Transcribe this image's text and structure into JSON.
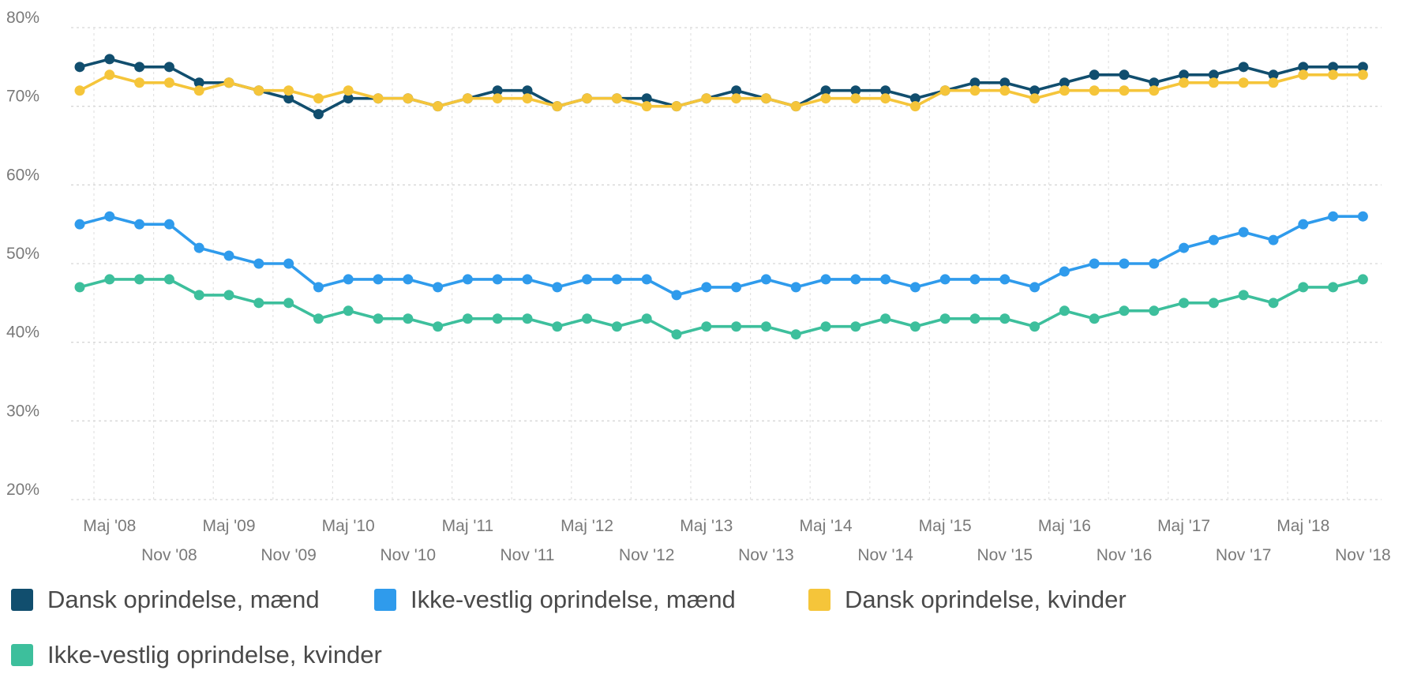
{
  "chart_data": {
    "type": "line",
    "ylim": [
      20,
      80
    ],
    "yticks": [
      20,
      30,
      40,
      50,
      60,
      70,
      80
    ],
    "y_tick_labels": [
      "20%",
      "30%",
      "40%",
      "50%",
      "60%",
      "70%",
      "80%"
    ],
    "x_labels_upper": [
      "Maj '08",
      "Maj '09",
      "Maj '10",
      "Maj '11",
      "Maj '12",
      "Maj '13",
      "Maj '14",
      "Maj '15",
      "Maj '16",
      "Maj '17",
      "Maj '18"
    ],
    "x_labels_lower": [
      "Nov '08",
      "Nov '09",
      "Nov '10",
      "Nov '11",
      "Nov '12",
      "Nov '13",
      "Nov '14",
      "Nov '15",
      "Nov '16",
      "Nov '17",
      "Nov '18"
    ],
    "grid": true,
    "legend_position": "bottom-left",
    "series": [
      {
        "name": "Dansk oprindelse, mænd",
        "color": "#114e6e",
        "values": [
          75,
          76,
          75,
          75,
          73,
          73,
          72,
          71,
          69,
          71,
          71,
          71,
          70,
          71,
          72,
          72,
          70,
          71,
          71,
          71,
          70,
          71,
          72,
          71,
          70,
          72,
          72,
          72,
          71,
          72,
          73,
          73,
          72,
          73,
          74,
          74,
          73,
          74,
          74,
          75,
          74,
          75,
          75,
          75
        ]
      },
      {
        "name": "Ikke-vestlig oprindelse, mænd",
        "color": "#2f9bec",
        "values": [
          55,
          56,
          55,
          55,
          52,
          51,
          50,
          50,
          47,
          48,
          48,
          48,
          47,
          48,
          48,
          48,
          47,
          48,
          48,
          48,
          46,
          47,
          47,
          48,
          47,
          48,
          48,
          48,
          47,
          48,
          48,
          48,
          47,
          49,
          50,
          50,
          50,
          52,
          53,
          54,
          53,
          55,
          56,
          56
        ]
      },
      {
        "name": "Dansk oprindelse, kvinder",
        "color": "#f5c53a",
        "values": [
          72,
          74,
          73,
          73,
          72,
          73,
          72,
          72,
          71,
          72,
          71,
          71,
          70,
          71,
          71,
          71,
          70,
          71,
          71,
          70,
          70,
          71,
          71,
          71,
          70,
          71,
          71,
          71,
          70,
          72,
          72,
          72,
          71,
          72,
          72,
          72,
          72,
          73,
          73,
          73,
          73,
          74,
          74,
          74
        ]
      },
      {
        "name": "Ikke-vestlig oprindelse, kvinder",
        "color": "#3dbf9c",
        "values": [
          47,
          48,
          48,
          48,
          46,
          46,
          45,
          45,
          43,
          44,
          43,
          43,
          42,
          43,
          43,
          43,
          42,
          43,
          42,
          43,
          41,
          42,
          42,
          42,
          41,
          42,
          42,
          43,
          42,
          43,
          43,
          43,
          42,
          44,
          43,
          44,
          44,
          45,
          45,
          46,
          45,
          47,
          47,
          48
        ]
      }
    ]
  }
}
